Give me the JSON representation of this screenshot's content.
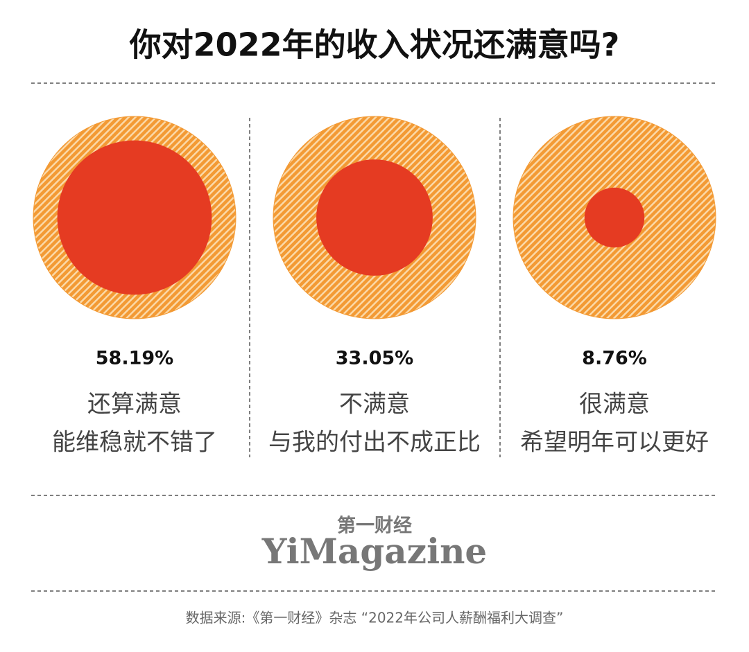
{
  "chart_data": {
    "type": "proportion-circles",
    "title": "你对2022年的收入状况还满意吗?",
    "categories": [
      "还算满意",
      "不满意",
      "很满意"
    ],
    "descriptions": [
      "能维稳就不错了",
      "与我的付出不成正比",
      "希望明年可以更好"
    ],
    "values": [
      58.19,
      33.05,
      8.76
    ],
    "value_labels": [
      "58.19%",
      "33.05%",
      "8.76%"
    ],
    "color": "#e53b22",
    "outer_color": "#f39a34",
    "brand_cn": "第一财经",
    "brand_en": "YiMagazine",
    "source": "数据来源:《第一财经》杂志 “2022年公司人薪酬福利大调查”"
  }
}
